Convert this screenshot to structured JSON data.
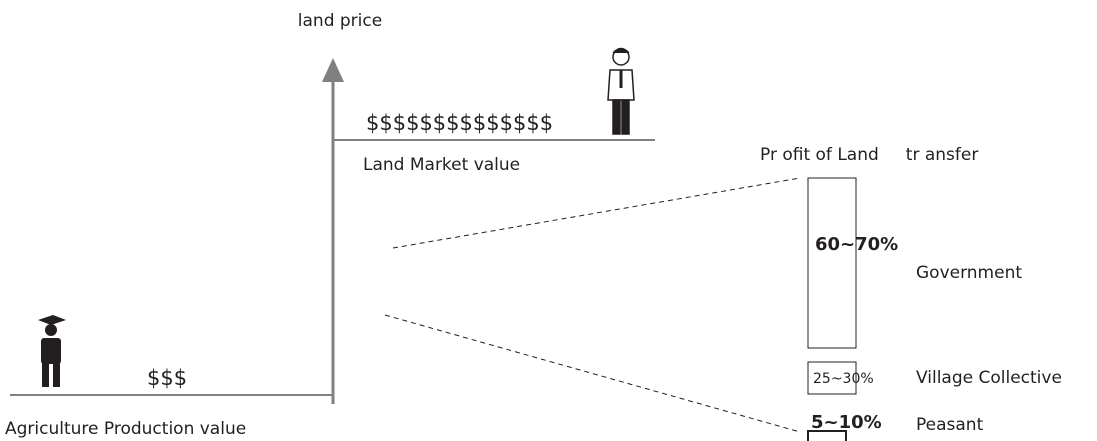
{
  "axis_label": "land price",
  "market": {
    "symbols": "$$$$$$$$$$$$$$",
    "label": "Land Market value"
  },
  "agriculture": {
    "symbols": "$$$",
    "label": "Agriculture Production value"
  },
  "profit": {
    "title": "Pr ofit of Land     tr ansfer",
    "shares": [
      {
        "range": "60~70%",
        "party": "Government"
      },
      {
        "range": "25~30%",
        "party": "Village Collective"
      },
      {
        "range": "5~10%",
        "party": "Peasant"
      }
    ]
  }
}
